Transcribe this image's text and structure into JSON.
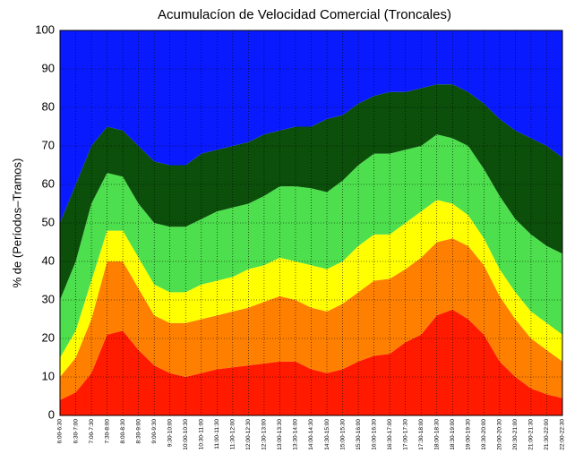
{
  "chart_data": {
    "type": "stacked-area",
    "title": "Acumulacíon de Velocidad Comercial (Troncales)",
    "y_label": "% de (Períodos–Tramos)",
    "categories": [
      "6:00-6:30",
      "6:30-7:00",
      "7:00-7:30",
      "7:30-8:00",
      "8:00-8:30",
      "8:30-9:00",
      "9:00-9:30",
      "9:30-10:00",
      "10:00-10:30",
      "10:30-11:00",
      "11:00-11:30",
      "11:30-12:00",
      "12:00-12:30",
      "12:30-13:00",
      "13:00-13:30",
      "13:30-14:00",
      "14:00-14:30",
      "14:30-15:00",
      "15:00-15:30",
      "15:30-16:00",
      "16:00-16:30",
      "16:30-17:00",
      "17:00-17:30",
      "17:30-18:00",
      "18:00-18:30",
      "18:30-19:00",
      "19:00-19:30",
      "19:30-20:00",
      "20:00-20:30",
      "20:30-21:00",
      "21:00-21:30",
      "21:30-22:00",
      "22:00-22:30"
    ],
    "series": [
      {
        "color": "#ff1a00",
        "values": [
          4,
          6,
          11,
          21,
          22,
          17,
          13,
          11,
          10,
          11,
          12,
          12.5,
          13,
          13.5,
          14,
          14,
          12,
          11,
          12,
          14,
          15.5,
          16,
          19,
          21,
          26,
          27.5,
          25,
          21,
          14,
          10,
          7,
          5.5,
          4.5
        ]
      },
      {
        "color": "#ff8000",
        "values": [
          6,
          9,
          14,
          19,
          18,
          16,
          13,
          13,
          14,
          14,
          14,
          14.5,
          15,
          16,
          17,
          16,
          16,
          16,
          17,
          18,
          19.5,
          19.5,
          19,
          20,
          19,
          18.5,
          19,
          18,
          17,
          15,
          13,
          11.5,
          9.5
        ]
      },
      {
        "color": "#ffff00",
        "values": [
          5,
          7,
          10,
          8,
          8,
          8,
          8,
          8,
          8,
          9,
          9,
          9,
          10,
          9.5,
          10,
          10,
          11,
          11,
          11,
          12,
          12,
          11.5,
          12,
          12,
          11,
          9,
          8,
          7,
          7,
          7,
          7,
          7,
          7
        ]
      },
      {
        "color": "#4ddf4d",
        "values": [
          15,
          18,
          20,
          15,
          14,
          14,
          16,
          17,
          17,
          17,
          18,
          18,
          17,
          18,
          18.5,
          19.5,
          20,
          20,
          21,
          21,
          21,
          21,
          19,
          17,
          17,
          17,
          18,
          18,
          19,
          19,
          20,
          20,
          21
        ]
      },
      {
        "color": "#0b4f0b",
        "values": [
          20,
          20,
          15,
          12,
          12,
          15,
          16,
          16,
          16,
          17,
          16,
          16,
          16,
          16,
          14.5,
          15.5,
          16,
          19,
          17,
          16,
          15,
          16,
          15,
          15,
          13,
          14,
          14,
          17,
          20,
          23,
          25,
          26,
          25
        ]
      },
      {
        "color": "#0a1aff",
        "values": [
          50,
          40,
          30,
          25,
          26,
          30,
          34,
          35,
          35,
          32,
          31,
          30,
          29,
          27,
          26,
          25,
          25,
          23,
          22,
          19,
          17,
          16,
          16,
          15,
          14,
          14,
          16,
          19,
          23,
          26,
          28,
          30,
          33
        ]
      }
    ],
    "ylim": [
      0,
      100
    ],
    "yticks": [
      0,
      10,
      20,
      30,
      40,
      50,
      60,
      70,
      80,
      90,
      100
    ],
    "grid": true
  }
}
